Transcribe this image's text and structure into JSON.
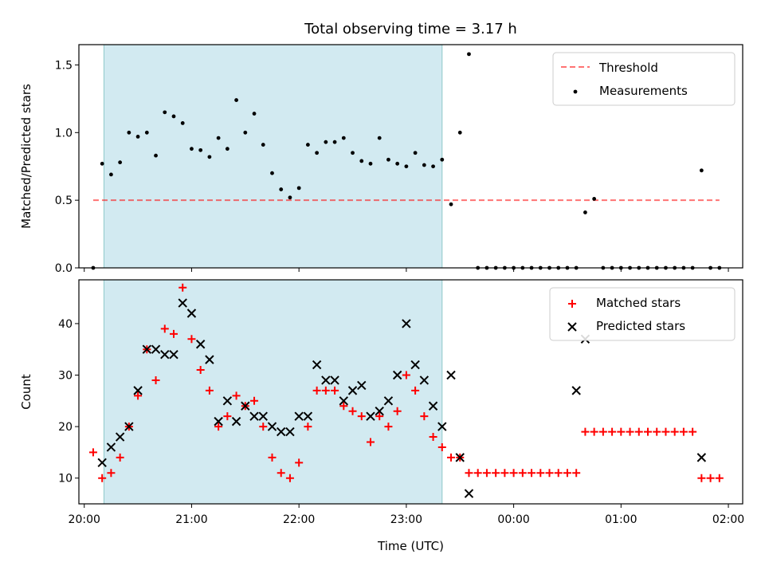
{
  "figure": {
    "title": "Total observing time = 3.17 h",
    "xlabel": "Time (UTC)"
  },
  "colors": {
    "shade": "#add8e6",
    "threshold": "#ff0000",
    "matched": "#ff0000",
    "predicted": "#000000",
    "measurements": "#000000",
    "frame": "#000000"
  },
  "chart_data": [
    {
      "type": "scatter",
      "ylabel": "Matched/Predicted stars",
      "xlim": [
        "19:57",
        "02:08"
      ],
      "ylim": [
        0,
        1.65
      ],
      "yticks": [
        0.0,
        0.5,
        1.0,
        1.5
      ],
      "ytick_labels": [
        "0.0",
        "0.5",
        "1.0",
        "1.5"
      ],
      "xticks": [
        "20:00",
        "21:00",
        "22:00",
        "23:00",
        "00:00",
        "01:00",
        "02:00"
      ],
      "shaded_span": [
        "20:11",
        "23:20"
      ],
      "legend": {
        "location": "upper right",
        "entries": [
          "Threshold",
          "Measurements"
        ]
      },
      "threshold": {
        "name": "Threshold",
        "y": 0.5,
        "x_range": [
          "20:05",
          "01:55"
        ],
        "style": "dashed"
      },
      "series": [
        {
          "name": "Measurements",
          "x": [
            "20:05",
            "20:10",
            "20:15",
            "20:20",
            "20:25",
            "20:30",
            "20:35",
            "20:40",
            "20:45",
            "20:50",
            "20:55",
            "21:00",
            "21:05",
            "21:10",
            "21:15",
            "21:20",
            "21:25",
            "21:30",
            "21:35",
            "21:40",
            "21:45",
            "21:50",
            "21:55",
            "22:00",
            "22:05",
            "22:10",
            "22:15",
            "22:20",
            "22:25",
            "22:30",
            "22:35",
            "22:40",
            "22:45",
            "22:50",
            "22:55",
            "23:00",
            "23:05",
            "23:10",
            "23:15",
            "23:20",
            "23:25",
            "23:30",
            "23:35",
            "23:40",
            "23:45",
            "23:50",
            "23:55",
            "00:00",
            "00:05",
            "00:10",
            "00:15",
            "00:20",
            "00:25",
            "00:30",
            "00:35",
            "00:40",
            "00:45",
            "00:50",
            "00:55",
            "01:00",
            "01:05",
            "01:10",
            "01:15",
            "01:20",
            "01:25",
            "01:30",
            "01:35",
            "01:40",
            "01:45",
            "01:50",
            "01:55"
          ],
          "y": [
            0.0,
            0.77,
            0.69,
            0.78,
            1.0,
            0.97,
            1.0,
            0.83,
            1.15,
            1.12,
            1.07,
            0.88,
            0.87,
            0.82,
            0.96,
            0.88,
            1.24,
            1.0,
            1.14,
            0.91,
            0.7,
            0.58,
            0.52,
            0.59,
            0.91,
            0.85,
            0.93,
            0.93,
            0.96,
            0.85,
            0.79,
            0.77,
            0.96,
            0.8,
            0.77,
            0.75,
            0.85,
            0.76,
            0.75,
            0.8,
            0.47,
            1.0,
            1.58,
            0.0,
            0.0,
            0.0,
            0.0,
            0.0,
            0.0,
            0.0,
            0.0,
            0.0,
            0.0,
            0.0,
            0.0,
            0.41,
            0.51,
            0.0,
            0.0,
            0.0,
            0.0,
            0.0,
            0.0,
            0.0,
            0.0,
            0.0,
            0.0,
            0.0,
            0.72,
            0.0,
            0.0
          ]
        }
      ]
    },
    {
      "type": "scatter",
      "ylabel": "Count",
      "xlabel": "Time (UTC)",
      "xlim": [
        "19:57",
        "02:08"
      ],
      "ylim": [
        5,
        48.5
      ],
      "yticks": [
        10,
        20,
        30,
        40
      ],
      "ytick_labels": [
        "10",
        "20",
        "30",
        "40"
      ],
      "xticks": [
        "20:00",
        "21:00",
        "22:00",
        "23:00",
        "00:00",
        "01:00",
        "02:00"
      ],
      "xtick_labels": [
        "20:00",
        "21:00",
        "22:00",
        "23:00",
        "00:00",
        "01:00",
        "02:00"
      ],
      "shaded_span": [
        "20:11",
        "23:20"
      ],
      "legend": {
        "location": "upper right",
        "entries": [
          "Matched stars",
          "Predicted stars"
        ]
      },
      "series": [
        {
          "name": "Matched stars",
          "marker": "+",
          "x": [
            "20:05",
            "20:10",
            "20:15",
            "20:20",
            "20:25",
            "20:30",
            "20:35",
            "20:40",
            "20:45",
            "20:50",
            "20:55",
            "21:00",
            "21:05",
            "21:10",
            "21:15",
            "21:20",
            "21:25",
            "21:30",
            "21:35",
            "21:40",
            "21:45",
            "21:50",
            "21:55",
            "22:00",
            "22:05",
            "22:10",
            "22:15",
            "22:20",
            "22:25",
            "22:30",
            "22:35",
            "22:40",
            "22:45",
            "22:50",
            "22:55",
            "23:00",
            "23:05",
            "23:10",
            "23:15",
            "23:20",
            "23:25",
            "23:30",
            "23:35",
            "23:40",
            "23:45",
            "23:50",
            "23:55",
            "00:00",
            "00:05",
            "00:10",
            "00:15",
            "00:20",
            "00:25",
            "00:30",
            "00:35",
            "00:40",
            "00:45",
            "00:50",
            "00:55",
            "01:00",
            "01:05",
            "01:10",
            "01:15",
            "01:20",
            "01:25",
            "01:30",
            "01:35",
            "01:40",
            "01:45",
            "01:50",
            "01:55"
          ],
          "y": [
            15,
            10,
            11,
            14,
            20,
            26,
            35,
            29,
            39,
            38,
            47,
            37,
            31,
            27,
            20,
            22,
            26,
            24,
            25,
            20,
            14,
            11,
            10,
            13,
            20,
            27,
            27,
            27,
            24,
            23,
            22,
            17,
            22,
            20,
            23,
            30,
            27,
            22,
            18,
            16,
            14,
            14,
            11,
            11,
            11,
            11,
            11,
            11,
            11,
            11,
            11,
            11,
            11,
            11,
            11,
            19,
            19,
            19,
            19,
            19,
            19,
            19,
            19,
            19,
            19,
            19,
            19,
            19,
            10,
            10,
            10
          ]
        },
        {
          "name": "Predicted stars",
          "marker": "x",
          "x": [
            "20:10",
            "20:15",
            "20:20",
            "20:25",
            "20:30",
            "20:35",
            "20:40",
            "20:45",
            "20:50",
            "20:55",
            "21:00",
            "21:05",
            "21:10",
            "21:15",
            "21:20",
            "21:25",
            "21:30",
            "21:35",
            "21:40",
            "21:45",
            "21:50",
            "21:55",
            "22:00",
            "22:05",
            "22:10",
            "22:15",
            "22:20",
            "22:25",
            "22:30",
            "22:35",
            "22:40",
            "22:45",
            "22:50",
            "22:55",
            "23:00",
            "23:05",
            "23:10",
            "23:15",
            "23:20",
            "23:25",
            "23:30",
            "23:35",
            "00:35",
            "00:40",
            "01:45"
          ],
          "y": [
            13,
            16,
            18,
            20,
            27,
            35,
            35,
            34,
            34,
            44,
            42,
            36,
            33,
            21,
            25,
            21,
            24,
            22,
            22,
            20,
            19,
            19,
            22,
            22,
            32,
            29,
            29,
            25,
            27,
            28,
            22,
            23,
            25,
            30,
            40,
            32,
            29,
            24,
            20,
            30,
            14,
            7,
            27,
            37,
            14
          ]
        }
      ]
    }
  ]
}
